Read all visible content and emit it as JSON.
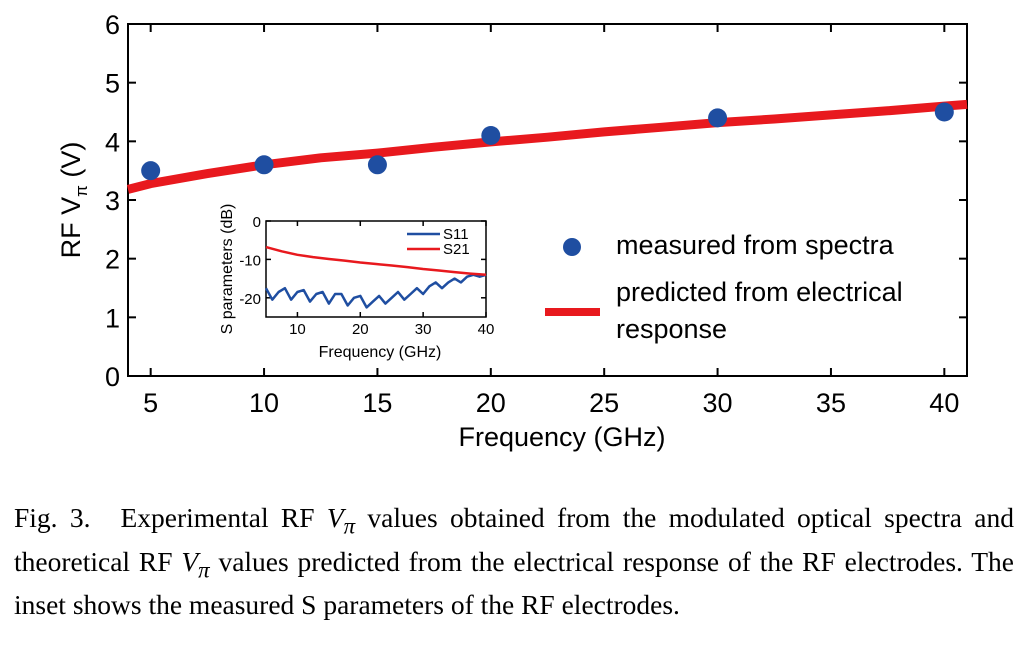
{
  "chart_data": [
    {
      "type": "scatter",
      "xlabel": "Frequency (GHz)",
      "ylabel_main": "RF V",
      "ylabel_sub": "π",
      "ylabel_unit": " (V)",
      "xlim": [
        4,
        41
      ],
      "ylim": [
        0,
        6
      ],
      "x_ticks": [
        5,
        10,
        15,
        20,
        25,
        30,
        35,
        40
      ],
      "y_ticks": [
        0,
        1,
        2,
        3,
        4,
        5,
        6
      ],
      "series": [
        {
          "name": "measured from spectra",
          "type": "scatter",
          "color": "#1f4ea1",
          "x": [
            5,
            10,
            15,
            20,
            30,
            40
          ],
          "y": [
            3.5,
            3.6,
            3.6,
            4.1,
            4.4,
            4.5
          ]
        },
        {
          "name": "predicted from electrical response",
          "type": "line",
          "color": "#e8191e",
          "x": [
            4,
            5,
            7.5,
            10,
            12.5,
            15,
            17.5,
            20,
            22.5,
            25,
            27.5,
            30,
            32.5,
            35,
            37.5,
            40,
            41
          ],
          "y": [
            3.18,
            3.28,
            3.45,
            3.6,
            3.72,
            3.8,
            3.9,
            3.99,
            4.07,
            4.16,
            4.24,
            4.32,
            4.38,
            4.45,
            4.52,
            4.6,
            4.63
          ]
        }
      ],
      "legend": {
        "placement": "right",
        "entries": [
          {
            "text": "measured from spectra"
          },
          {
            "line1": "predicted from electrical",
            "line2": "response"
          }
        ]
      }
    },
    {
      "type": "line",
      "role": "inset",
      "xlabel": "Frequency (GHz)",
      "ylabel": "S parameters (dB)",
      "xlim": [
        5,
        40
      ],
      "ylim": [
        -25,
        0
      ],
      "x_ticks": [
        10,
        20,
        30,
        40
      ],
      "y_ticks": [
        0,
        -10,
        -20
      ],
      "series": [
        {
          "name": "S11",
          "color": "#1f4ea1",
          "x": [
            5,
            6,
            7,
            8,
            9,
            10,
            11,
            12,
            13,
            14,
            15,
            16,
            17,
            18,
            19,
            20,
            21,
            22,
            23,
            24,
            25,
            26,
            27,
            28,
            29,
            30,
            31,
            32,
            33,
            34,
            35,
            36,
            37,
            38,
            39,
            40
          ],
          "y": [
            -17.5,
            -20.5,
            -18.5,
            -17.5,
            -20.5,
            -18.5,
            -18,
            -21,
            -19,
            -18.5,
            -21.5,
            -19,
            -19,
            -22,
            -20,
            -19.5,
            -22.5,
            -21,
            -19.5,
            -21.5,
            -20,
            -18.5,
            -20.5,
            -19,
            -17.5,
            -19,
            -17,
            -16,
            -17.5,
            -16,
            -15,
            -16,
            -14.5,
            -14,
            -14.5,
            -14
          ]
        },
        {
          "name": "S21",
          "color": "#e8191e",
          "x": [
            5,
            7.5,
            10,
            12.5,
            15,
            17.5,
            20,
            22.5,
            25,
            27.5,
            30,
            32.5,
            35,
            37.5,
            40
          ],
          "y": [
            -6.8,
            -7.9,
            -8.8,
            -9.4,
            -9.9,
            -10.3,
            -10.8,
            -11.2,
            -11.6,
            -12,
            -12.5,
            -12.9,
            -13.3,
            -13.7,
            -14
          ]
        }
      ]
    }
  ],
  "caption": {
    "fig_label": "Fig. 3.",
    "part1": "Experimental RF ",
    "vpi_v": "V",
    "vpi_sub": "π",
    "part2": " values obtained from the modulated optical spectra and theoretical RF ",
    "part3": " values predicted from the electrical response of the RF electrodes. The inset shows the measured S parameters of the RF electrodes."
  }
}
